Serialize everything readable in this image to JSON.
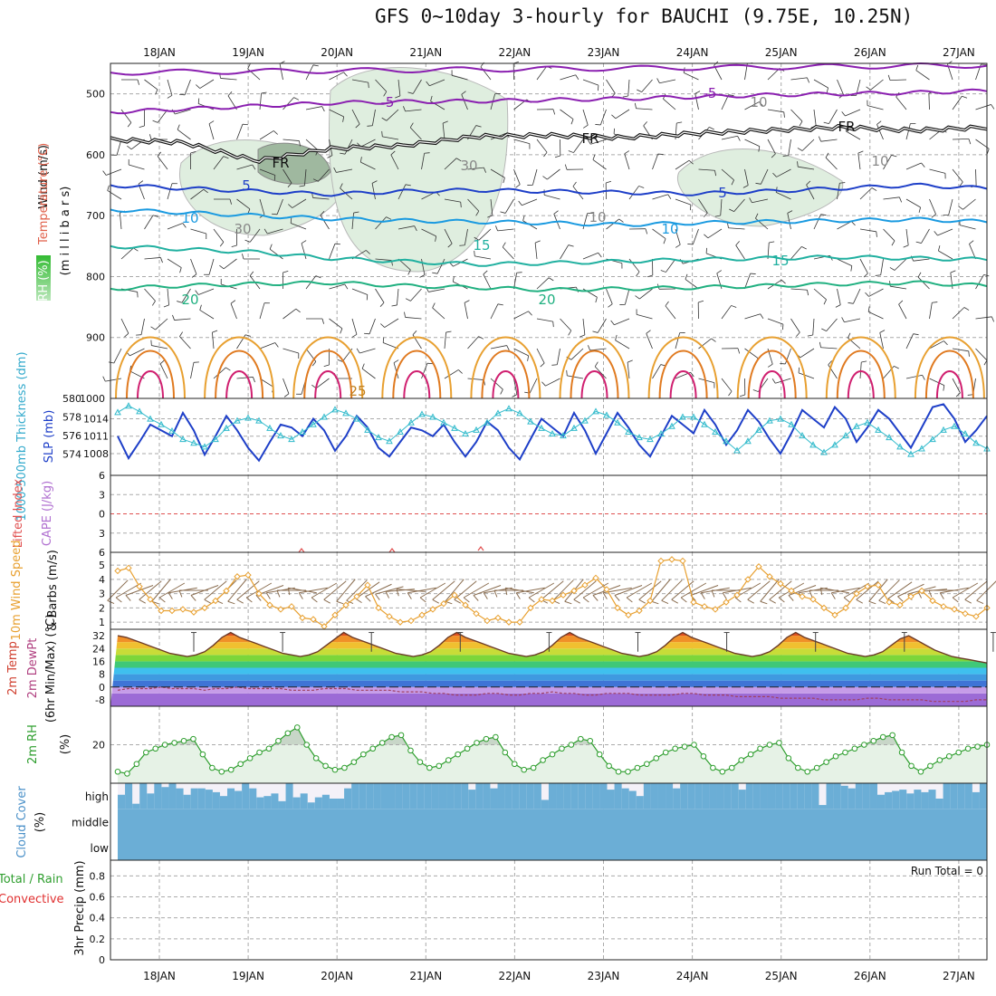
{
  "title": "GFS 0~10day 3-hourly for BAUCHI (9.75E, 10.25N)",
  "dates": [
    "18JAN",
    "19JAN",
    "20JAN",
    "21JAN",
    "22JAN",
    "23JAN",
    "24JAN",
    "25JAN",
    "26JAN",
    "27JAN"
  ],
  "colors": {
    "grid": "#aaaaaa",
    "slp": "#1e3fc8",
    "thickness": "#33bbcc",
    "wind10m": "#e8a030",
    "barb": "#8a6d50",
    "rh": "#2e9e2e",
    "rh_fill": "#e6f2e6",
    "cloud": "#6baed6",
    "cloud_gap": "#f4f1f8"
  },
  "chart_data": [
    {
      "panel": "upper-air",
      "type": "contour",
      "ylabels": [
        "Wind (m/s)",
        "Temperature (°C)",
        "RH (%)",
        "(m i l l i b a r s)"
      ],
      "yticks": [
        500,
        600,
        700,
        800,
        900,
        1000
      ],
      "ylim": [
        1000,
        450
      ],
      "contour_labels": [
        "-5",
        "-5",
        "FR",
        "FR",
        "FR",
        "5",
        "5",
        "10",
        "10",
        "15",
        "15",
        "20",
        "20",
        "25",
        "30",
        "30",
        "10",
        "10",
        "10"
      ],
      "temperature_levels": [
        {
          "label": "-5",
          "p": [
            530,
            525,
            520,
            515,
            513,
            512,
            510,
            508,
            505,
            502,
            500,
            498,
            495
          ]
        },
        {
          "label": "5",
          "p": [
            650,
            655,
            660,
            665,
            660,
            658,
            660,
            662,
            664,
            660,
            655,
            650,
            655
          ]
        },
        {
          "label": "10",
          "p": [
            690,
            695,
            700,
            705,
            708,
            710,
            712,
            715,
            712,
            710,
            708,
            706,
            710
          ]
        },
        {
          "label": "15",
          "p": [
            750,
            755,
            760,
            770,
            775,
            780,
            778,
            775,
            772,
            770,
            768,
            770,
            772
          ]
        },
        {
          "label": "20",
          "p": [
            820,
            815,
            812,
            810,
            815,
            818,
            822,
            820,
            818,
            815,
            812,
            810,
            815
          ]
        }
      ],
      "freezing_level_p": [
        575,
        580,
        610,
        590,
        585,
        570,
        568,
        572,
        565,
        560,
        555,
        560,
        555
      ]
    },
    {
      "panel": "slp-thickness",
      "type": "line",
      "ylabels": [
        "1000-500mb Thickness (dm)",
        "SLP (mb)"
      ],
      "yticks_left": [
        574,
        576,
        578,
        580
      ],
      "yticks_right": [
        1008,
        1011,
        1014
      ],
      "series": [
        {
          "name": "SLP (mb)",
          "values": [
            1011.0,
            1007.2,
            1010.0,
            1013.0,
            1012.0,
            1011.0,
            1015.0,
            1012.0,
            1007.8,
            1011.0,
            1014.5,
            1012.0,
            1009.0,
            1006.8,
            1010.0,
            1013.0,
            1012.5,
            1011.0,
            1014.0,
            1012.0,
            1008.5,
            1011.0,
            1014.5,
            1012.5,
            1009.0,
            1007.5,
            1010.0,
            1012.5,
            1012.0,
            1011.0,
            1013.0,
            1010.0,
            1007.5,
            1010.0,
            1013.5,
            1012.0,
            1009.0,
            1007.0,
            1010.5,
            1014.0,
            1012.5,
            1011.0,
            1015.0,
            1012.0,
            1008.0,
            1011.5,
            1015.0,
            1012.5,
            1009.5,
            1007.5,
            1011.0,
            1014.5,
            1013.0,
            1011.5,
            1015.5,
            1013.0,
            1009.5,
            1012.0,
            1015.5,
            1013.5,
            1010.5,
            1008.0,
            1011.5,
            1015.5,
            1014.0,
            1012.5,
            1016.0,
            1014.0,
            1010.0,
            1012.5,
            1015.5,
            1014.0,
            1011.5,
            1009.0,
            1012.5,
            1016.0,
            1016.5,
            1014.0,
            1010.0,
            1012.0,
            1014.5
          ]
        },
        {
          "name": "1000-500mb Thickness (dm)",
          "values": [
            578.5,
            579.2,
            578.6,
            577.8,
            577.2,
            576.5,
            575.6,
            575.2,
            574.8,
            575.6,
            576.8,
            577.6,
            577.9,
            577.6,
            576.8,
            576.0,
            575.6,
            576.4,
            577.2,
            578.0,
            578.8,
            578.4,
            577.8,
            576.6,
            575.8,
            575.4,
            576.4,
            577.4,
            578.3,
            578.0,
            577.4,
            576.8,
            576.2,
            576.6,
            577.4,
            578.4,
            578.9,
            578.4,
            577.5,
            576.8,
            576.2,
            576.0,
            576.8,
            577.6,
            578.6,
            578.2,
            577.4,
            576.4,
            575.8,
            575.6,
            576.2,
            577.0,
            578.0,
            578.0,
            577.2,
            576.4,
            575.4,
            574.4,
            575.4,
            576.6,
            577.6,
            577.8,
            577.2,
            576.0,
            575.0,
            574.2,
            575.0,
            576.0,
            577.0,
            577.4,
            576.6,
            575.8,
            574.8,
            574.0,
            574.6,
            575.6,
            576.6,
            577.0,
            576.2,
            575.2,
            574.6
          ]
        }
      ]
    },
    {
      "panel": "lifted-index-cape",
      "type": "line",
      "ylabels": [
        "Lifted Index",
        "CAPE (J/kg)"
      ],
      "yticks": [
        -6,
        -3,
        0,
        3,
        6
      ],
      "ylim": [
        6,
        -6
      ],
      "values": [],
      "zero_line": 0
    },
    {
      "panel": "wind10m",
      "type": "line",
      "ylabels": [
        "10m Wind Speed",
        "& Barbs (m/s)"
      ],
      "yticks": [
        1,
        2,
        3,
        4,
        5
      ],
      "ylim": [
        0.5,
        5.9
      ],
      "values": [
        4.6,
        4.8,
        3.5,
        2.6,
        1.8,
        1.8,
        1.9,
        1.7,
        2.0,
        2.5,
        3.2,
        4.2,
        4.3,
        3.0,
        2.2,
        1.9,
        2.1,
        1.3,
        1.2,
        0.7,
        1.5,
        2.2,
        2.8,
        3.6,
        2.0,
        1.4,
        1.0,
        1.1,
        1.5,
        1.9,
        2.3,
        2.9,
        2.2,
        1.6,
        1.1,
        1.3,
        1.0,
        1.0,
        2.0,
        2.6,
        2.5,
        2.9,
        3.2,
        3.6,
        4.1,
        3.3,
        2.0,
        1.5,
        1.8,
        2.5,
        5.3,
        5.4,
        5.3,
        2.4,
        2.1,
        1.9,
        2.4,
        2.9,
        4.0,
        4.9,
        4.2,
        3.7,
        3.2,
        2.8,
        2.6,
        2.0,
        1.5,
        2.0,
        3.0,
        3.5,
        3.6,
        2.4,
        2.2,
        2.8,
        3.2,
        2.5,
        2.1,
        1.9,
        1.6,
        1.4,
        2.0
      ],
      "wind_direction_deg": [
        45,
        60,
        70,
        50,
        40,
        60,
        80,
        90,
        70,
        50,
        45,
        40,
        50,
        60,
        70,
        80,
        90,
        100,
        80,
        60,
        50,
        40,
        45,
        55,
        65,
        75,
        85,
        95,
        80,
        60,
        50,
        40,
        50,
        60,
        70,
        80,
        90,
        100,
        80,
        60,
        50,
        45,
        40,
        50,
        60,
        70,
        80,
        70,
        60,
        50,
        40,
        45,
        50,
        60,
        70,
        80,
        90,
        80,
        60,
        50,
        40,
        50,
        60,
        70,
        80,
        90,
        100,
        80,
        60,
        50,
        40,
        45,
        55,
        65,
        75,
        85,
        90,
        80,
        60,
        50,
        45
      ]
    },
    {
      "panel": "temperature",
      "type": "area",
      "ylabels": [
        "2m Temp",
        "2m DewPt",
        "(6hr Min/Max) (°C)"
      ],
      "yticks": [
        32,
        24,
        16,
        8,
        0,
        -8
      ],
      "ylim": [
        -12,
        36
      ],
      "temp_values": [
        32,
        31,
        29,
        27,
        25,
        23,
        21,
        20,
        19,
        20,
        22,
        26,
        31,
        34,
        31,
        29,
        27,
        25,
        23,
        21,
        20,
        19,
        20,
        22,
        26,
        30,
        34,
        31,
        29,
        27,
        25,
        23,
        21,
        20,
        19,
        20,
        22,
        26,
        31,
        34,
        31,
        29,
        27,
        25,
        23,
        21,
        20,
        19,
        20,
        22,
        26,
        31,
        34,
        31,
        29,
        27,
        25,
        23,
        21,
        20,
        19,
        20,
        22,
        26,
        31,
        34,
        31,
        29,
        27,
        25,
        23,
        21,
        20,
        19,
        20,
        22,
        26,
        31,
        34,
        31,
        29,
        27,
        25,
        23,
        21,
        20,
        19,
        20,
        22,
        26,
        30,
        32,
        29,
        26,
        23,
        21,
        19,
        18,
        17,
        16,
        15
      ],
      "dewpt_values": [
        -2,
        -1,
        -1,
        -1,
        0,
        -1,
        -1,
        -1,
        -2,
        -1,
        -1,
        0,
        -1,
        -1,
        -1,
        -1,
        -2,
        -2,
        -2,
        -1,
        -1,
        -1,
        -2,
        -2,
        -2,
        -2,
        -3,
        -3,
        -3,
        -4,
        -4,
        -5,
        -5,
        -5,
        -4,
        -4,
        -5,
        -5,
        -4,
        -4,
        -3,
        -4,
        -4,
        -5,
        -5,
        -4,
        -4,
        -4,
        -5,
        -5,
        -5,
        -5,
        -4,
        -4,
        -5,
        -5,
        -5,
        -6,
        -6,
        -6,
        -6,
        -7,
        -7,
        -7,
        -7,
        -8,
        -8,
        -8,
        -8,
        -7,
        -7,
        -8,
        -8,
        -8,
        -8,
        -9,
        -9,
        -9,
        -9,
        -8,
        -8
      ]
    },
    {
      "panel": "rh2m",
      "type": "area",
      "ylabels": [
        "2m RH",
        "(%)"
      ],
      "yticks": [
        20
      ],
      "ylim": [
        0,
        40
      ],
      "values": [
        6,
        5,
        10,
        16,
        18,
        20,
        21,
        22,
        23,
        15,
        8,
        6,
        7,
        10,
        13,
        16,
        18,
        22,
        26,
        29,
        20,
        13,
        9,
        7,
        8,
        11,
        15,
        18,
        21,
        24,
        25,
        17,
        11,
        8,
        9,
        12,
        15,
        18,
        21,
        23,
        24,
        16,
        10,
        7,
        8,
        12,
        15,
        18,
        20,
        23,
        22,
        15,
        9,
        6,
        6,
        8,
        10,
        13,
        16,
        18,
        19,
        20,
        14,
        8,
        6,
        8,
        12,
        15,
        18,
        20,
        21,
        13,
        8,
        6,
        8,
        11,
        14,
        16,
        18,
        20,
        22,
        24,
        25,
        16,
        9,
        6,
        9,
        12,
        14,
        16,
        18,
        19,
        20
      ]
    },
    {
      "panel": "cloud-cover",
      "type": "bar",
      "ylabels": [
        "Cloud Cover",
        "(%)"
      ],
      "category_labels": [
        "high",
        "middle",
        "low"
      ],
      "high_cloud_values": [
        55,
        100,
        20,
        100,
        60,
        100,
        85,
        100,
        80,
        55,
        80,
        80,
        75,
        65,
        50,
        80,
        70,
        100,
        80,
        45,
        50,
        60,
        30,
        100,
        45,
        60,
        25,
        45,
        55,
        40,
        40,
        80,
        100,
        100,
        100,
        100,
        100,
        100,
        100,
        100,
        100,
        100,
        100,
        100,
        100,
        100,
        100,
        100,
        75,
        100,
        100,
        80,
        100,
        100,
        100,
        100,
        100,
        100,
        35,
        100,
        100,
        100,
        100,
        100,
        100,
        100,
        100,
        75,
        100,
        80,
        70,
        50,
        100,
        100,
        100,
        100,
        80,
        100,
        100,
        100,
        100,
        100,
        100,
        100,
        100,
        75,
        100,
        100,
        100,
        100,
        100,
        100,
        100,
        100,
        100,
        100,
        15,
        100,
        100,
        90,
        80,
        100,
        100,
        100,
        55,
        65,
        70,
        75,
        60,
        75,
        65,
        75,
        40,
        100,
        100,
        100,
        100,
        65,
        100
      ],
      "middle_low_values": [
        100,
        100,
        100
      ]
    },
    {
      "panel": "precip",
      "type": "bar",
      "ylabels": [
        "Total / Rain",
        "Convective",
        "3hr Precip (mm)"
      ],
      "yticks": [
        0,
        0.2,
        0.4,
        0.6,
        0.8
      ],
      "ylim": [
        0,
        0.95
      ],
      "values": [],
      "run_total_label": "Run Total = 0"
    }
  ]
}
